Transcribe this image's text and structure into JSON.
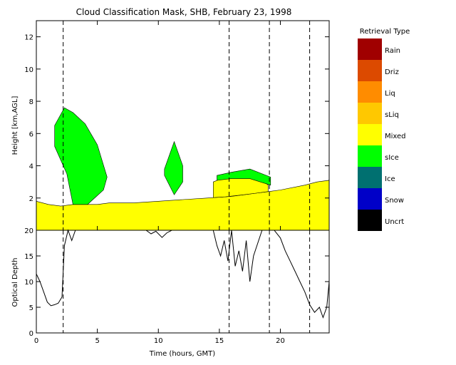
{
  "chart_data": [
    {
      "type": "heatmap",
      "title": "Cloud Classification Mask, SHB, February 23, 1998",
      "xlabel": "",
      "ylabel": "Height [km,AGL]",
      "xlim": [
        0,
        24
      ],
      "ylim": [
        0,
        13
      ],
      "x_ticks": [
        "0",
        "5",
        "10",
        "15",
        "20"
      ],
      "y_ticks": [
        "2",
        "4",
        "6",
        "8",
        "10",
        "12"
      ],
      "legend": {
        "title": "Retrieval Type",
        "placement": "right",
        "entries": [
          {
            "label": "Rain",
            "color": "#a00000"
          },
          {
            "label": "Driz",
            "color": "#dc4a00"
          },
          {
            "label": "Liq",
            "color": "#ff8c00"
          },
          {
            "label": "sLiq",
            "color": "#ffc800"
          },
          {
            "label": "Mixed",
            "color": "#ffff00"
          },
          {
            "label": "sIce",
            "color": "#00ff00"
          },
          {
            "label": "Ice",
            "color": "#007070"
          },
          {
            "label": "Snow",
            "color": "#0000c8"
          },
          {
            "label": "Uncrt",
            "color": "#000000"
          }
        ]
      },
      "regions": [
        {
          "class": "Mixed",
          "layer": "low cloud band",
          "top_km": [
            [
              0,
              1.8
            ],
            [
              1,
              1.6
            ],
            [
              2,
              1.5
            ],
            [
              3,
              1.6
            ],
            [
              5,
              1.6
            ],
            [
              6,
              1.7
            ],
            [
              8,
              1.7
            ],
            [
              10,
              1.8
            ],
            [
              12,
              1.9
            ],
            [
              14,
              2.0
            ],
            [
              16,
              2.1
            ],
            [
              18,
              2.3
            ],
            [
              20,
              2.5
            ],
            [
              22,
              2.8
            ],
            [
              23,
              3.0
            ],
            [
              24,
              3.1
            ]
          ]
        },
        {
          "class": "Mixed",
          "layer": "elevated mixed layer",
          "top_km": [
            [
              14.5,
              3.0
            ],
            [
              15.5,
              3.3
            ],
            [
              17,
              3.5
            ],
            [
              18,
              3.4
            ],
            [
              19,
              2.8
            ]
          ]
        },
        {
          "class": "sIce",
          "layer": "upper ice cloud",
          "x_range": [
            1.5,
            5.8
          ],
          "top_km": [
            [
              1.5,
              6.5
            ],
            [
              2.3,
              7.6
            ],
            [
              3,
              7.3
            ],
            [
              4,
              6.6
            ],
            [
              5,
              5.3
            ],
            [
              5.8,
              3.3
            ]
          ],
          "base_km": [
            [
              1.5,
              5.2
            ],
            [
              2.5,
              3.5
            ],
            [
              3,
              1.6
            ],
            [
              4.2,
              1.6
            ],
            [
              5.5,
              2.5
            ],
            [
              5.8,
              3.3
            ]
          ]
        },
        {
          "class": "sIce",
          "layer": "mid-level ice cloud",
          "x_range": [
            10.5,
            12.0
          ],
          "top_km": [
            [
              10.5,
              3.8
            ],
            [
              11.3,
              5.5
            ],
            [
              12,
              4.0
            ]
          ],
          "base_km": [
            [
              10.5,
              3.4
            ],
            [
              11.3,
              2.2
            ],
            [
              12,
              3.0
            ]
          ]
        },
        {
          "class": "sIce",
          "layer": "ice over mixed layer",
          "x_range": [
            14.8,
            19.2
          ],
          "top_km": [
            [
              14.8,
              3.4
            ],
            [
              16,
              3.6
            ],
            [
              17.5,
              3.8
            ],
            [
              19.2,
              3.3
            ]
          ],
          "base_km": [
            [
              14.8,
              3.1
            ],
            [
              16,
              3.2
            ],
            [
              17.5,
              3.2
            ],
            [
              19.2,
              2.8
            ]
          ]
        }
      ],
      "vertical_dashed_lines_hours": [
        2.2,
        15.8,
        19.1,
        22.4
      ],
      "grid": false
    },
    {
      "type": "line",
      "title": "",
      "xlabel": "Time (hours, GMT)",
      "ylabel": "Optical Depth",
      "xlim": [
        0,
        24
      ],
      "ylim": [
        0,
        20
      ],
      "x_ticks": [
        "0",
        "5",
        "10",
        "15",
        "20"
      ],
      "y_ticks": [
        "0",
        "5",
        "10",
        "15",
        "20"
      ],
      "series": [
        {
          "name": "",
          "x": [
            0,
            0.3,
            0.6,
            0.9,
            1.2,
            1.5,
            1.8,
            2.1,
            2.3,
            2.6,
            2.9,
            3.2,
            9.0,
            9.4,
            9.8,
            10.3,
            10.7,
            11.1,
            14.5,
            14.8,
            15.1,
            15.4,
            15.7,
            16.0,
            16.3,
            16.6,
            16.9,
            17.2,
            17.5,
            17.8,
            18.5,
            19.5,
            20.0,
            20.4,
            20.8,
            21.2,
            21.6,
            22.0,
            22.4,
            22.8,
            23.2,
            23.5,
            23.8,
            24.0
          ],
          "y": [
            11.5,
            10,
            8,
            6,
            5.3,
            5.5,
            5.8,
            7,
            17,
            20,
            18,
            20,
            20,
            19.3,
            19.8,
            18.6,
            19.5,
            20,
            20,
            17,
            15,
            18,
            14,
            20,
            13,
            16,
            12,
            18,
            10,
            15,
            20,
            20,
            18.5,
            16,
            14,
            12,
            10,
            8,
            5.5,
            4,
            5,
            3,
            5,
            10
          ]
        }
      ],
      "vertical_dashed_lines_hours": [
        2.2,
        15.8,
        19.1,
        22.4
      ],
      "grid": false
    }
  ]
}
